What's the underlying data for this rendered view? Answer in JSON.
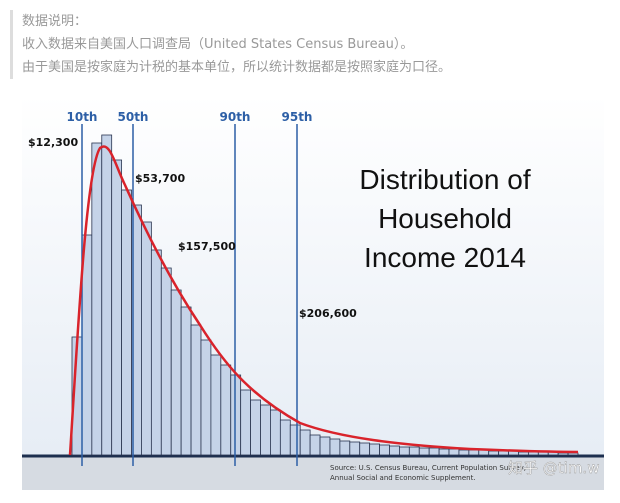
{
  "header": {
    "label": "数据说明：",
    "lines": [
      "收入数据来自美国人口调查局（United States Census Bureau）。",
      "由于美国是按家庭为计税的基本单位，所以统计数据都是按照家庭为口径。"
    ]
  },
  "chart_data": {
    "type": "bar",
    "title": "Distribution of Household Income 2014",
    "values": [
      118,
      220,
      312,
      320,
      295,
      265,
      250,
      233,
      205,
      187,
      165,
      148,
      130,
      115,
      100,
      90,
      80,
      65,
      55,
      50,
      45,
      35,
      30,
      25,
      20,
      18,
      16,
      14,
      13,
      12,
      11,
      10,
      9,
      8,
      8,
      7,
      7,
      6,
      6,
      5,
      5,
      5,
      4,
      4,
      4,
      3,
      3,
      3,
      3,
      2,
      2
    ],
    "color": "#c5d3e8",
    "percentiles": [
      {
        "label": "10th",
        "income": "$12,300"
      },
      {
        "label": "50th",
        "income": "$53,700"
      },
      {
        "label": "90th",
        "income": "$157,500"
      },
      {
        "label": "95th",
        "income": "$206,600"
      }
    ],
    "source": [
      "Source: U.S. Census Bureau, Current Population Survey,",
      "Annual Social and Economic Supplement."
    ]
  },
  "watermark": "知乎 @tim.w"
}
